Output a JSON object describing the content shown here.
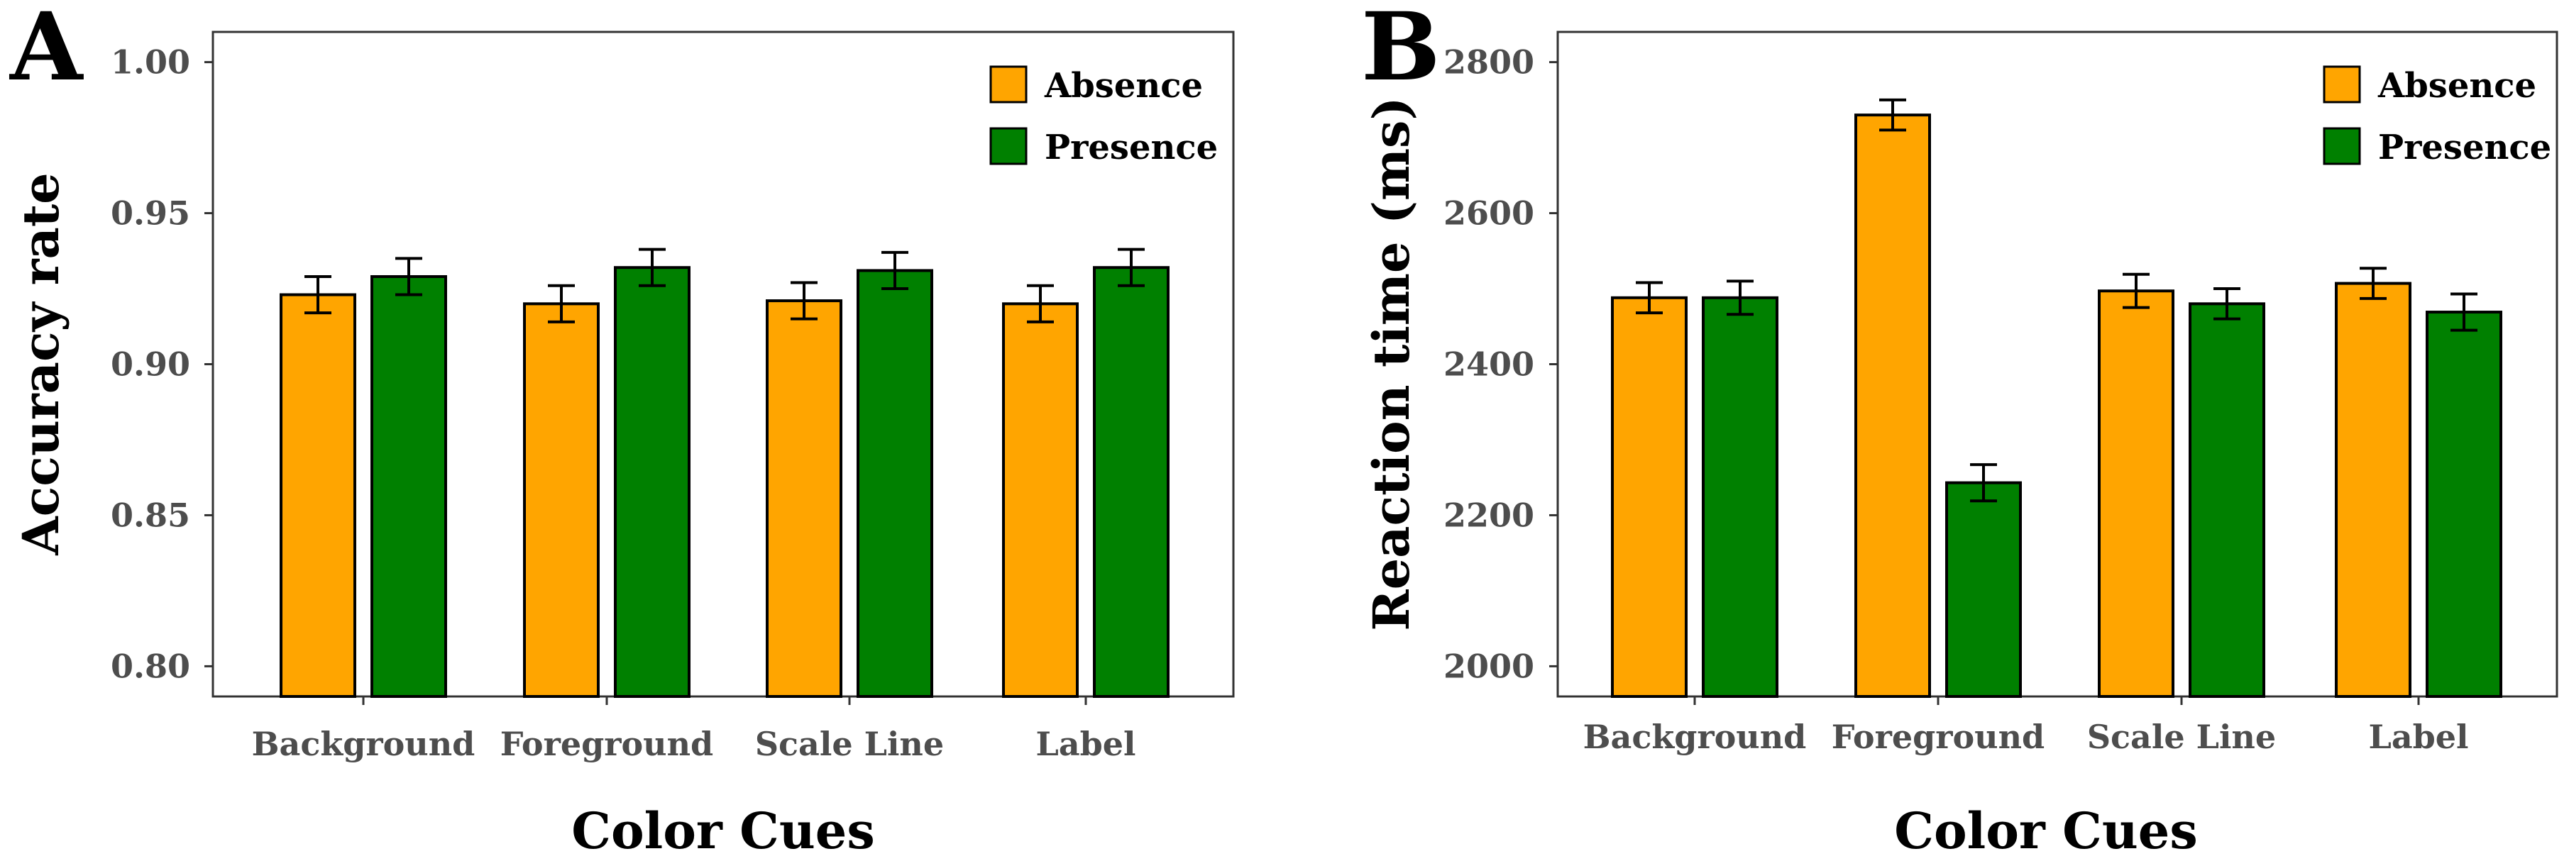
{
  "chart_data": [
    {
      "panel": "A",
      "type": "bar",
      "categories": [
        "Background",
        "Foreground",
        "Scale Line",
        "Label"
      ],
      "series": [
        {
          "name": "Absence",
          "values": [
            0.923,
            0.92,
            0.921,
            0.92
          ],
          "errors": [
            0.006,
            0.006,
            0.006,
            0.006
          ],
          "color": "#FFA500"
        },
        {
          "name": "Presence",
          "values": [
            0.929,
            0.932,
            0.931,
            0.932
          ],
          "errors": [
            0.006,
            0.006,
            0.006,
            0.006
          ],
          "color": "#008000"
        }
      ],
      "xlabel": "Color Cues",
      "ylabel": "Accuracy rate",
      "ylim": [
        0.79,
        1.01
      ],
      "yticks": [
        0.8,
        0.85,
        0.9,
        0.95,
        1.0
      ],
      "ytick_labels": [
        "0.80",
        "0.85",
        "0.90",
        "0.95",
        "1.00"
      ],
      "legend_position": "top-right",
      "grid": false
    },
    {
      "panel": "B",
      "type": "bar",
      "categories": [
        "Background",
        "Foreground",
        "Scale Line",
        "Label"
      ],
      "series": [
        {
          "name": "Absence",
          "values": [
            2488,
            2730,
            2497,
            2507
          ],
          "errors": [
            20,
            20,
            22,
            20
          ],
          "color": "#FFA500"
        },
        {
          "name": "Presence",
          "values": [
            2488,
            2243,
            2480,
            2469
          ],
          "errors": [
            22,
            24,
            20,
            24
          ],
          "color": "#008000"
        }
      ],
      "xlabel": "Color Cues",
      "ylabel": "Reaction  time  (ms)",
      "ylim": [
        1960,
        2840
      ],
      "yticks": [
        2000,
        2200,
        2400,
        2600,
        2800
      ],
      "ytick_labels": [
        "2000",
        "2200",
        "2400",
        "2600",
        "2800"
      ],
      "legend_position": "top-right",
      "grid": false
    }
  ]
}
